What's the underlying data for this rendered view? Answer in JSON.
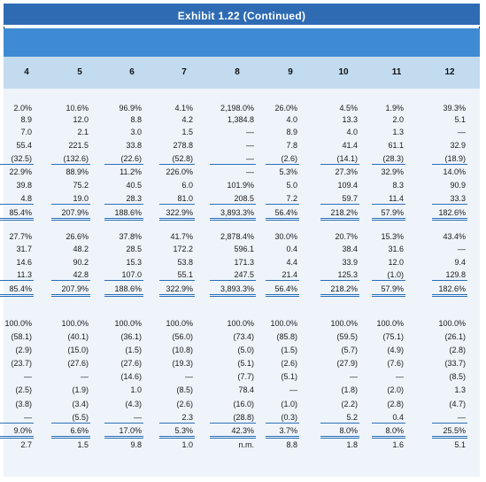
{
  "title": "Exhibit 1.22 (Continued)",
  "columns": [
    "4",
    "5",
    "6",
    "7",
    "8",
    "9",
    "10",
    "11",
    "12"
  ],
  "sections": [
    {
      "rows": [
        [
          "2.0%",
          "10.6%",
          "96.9%",
          "4.1%",
          "2,198.0%",
          "26.0%",
          "4.5%",
          "1.9%",
          "39.3%"
        ],
        [
          "8.9",
          "12.0",
          "8.8",
          "4.2",
          "1,384.8",
          "4.0",
          "13.3",
          "2.0",
          "5.1"
        ],
        [
          "7.0",
          "2.1",
          "3.0",
          "1.5",
          "—",
          "8.9",
          "4.0",
          "1.3",
          "—"
        ],
        [
          "55.4",
          "221.5",
          "33.8",
          "278.8",
          "—",
          "7.8",
          "41.4",
          "61.1",
          "32.9"
        ],
        [
          "(32.5)",
          "(132.6)",
          "(22.6)",
          "(52.8)",
          "—",
          "(2.6)",
          "(14.1)",
          "(28.3)",
          "(18.9)"
        ],
        [
          "22.9%",
          "88.9%",
          "11.2%",
          "226.0%",
          "—",
          "5.3%",
          "27.3%",
          "32.9%",
          "14.0%"
        ],
        [
          "39.8",
          "75.2",
          "40.5",
          "6.0",
          "101.9%",
          "5.0",
          "109.4",
          "8.3",
          "90.9"
        ],
        [
          "4.8",
          "19.0",
          "28.3",
          "81.0",
          "208.5",
          "7.2",
          "59.7",
          "11.4",
          "33.3"
        ],
        [
          "85.4%",
          "207.9%",
          "188.6%",
          "322.9%",
          "3,893.3%",
          "56.4%",
          "218.2%",
          "57.9%",
          "182.6%"
        ]
      ]
    },
    {
      "rows": [
        [
          "27.7%",
          "26.6%",
          "37.8%",
          "41.7%",
          "2,878.4%",
          "30.0%",
          "20.7%",
          "15.3%",
          "43.4%"
        ],
        [
          "31.7",
          "48.2",
          "28.5",
          "172.2",
          "596.1",
          "0.4",
          "38.4",
          "31.6",
          "—"
        ],
        [
          "14.6",
          "90.2",
          "15.3",
          "53.8",
          "171.3",
          "4.4",
          "33.9",
          "12.0",
          "9.4"
        ],
        [
          "11.3",
          "42.8",
          "107.0",
          "55.1",
          "247.5",
          "21.4",
          "125.3",
          "(1.0)",
          "129.8"
        ],
        [
          "85.4%",
          "207.9%",
          "188.6%",
          "322.9%",
          "3,893.3%",
          "56.4%",
          "218.2%",
          "57.9%",
          "182.6%"
        ]
      ]
    },
    {
      "rows": [
        [
          "100.0%",
          "100.0%",
          "100.0%",
          "100.0%",
          "100.0%",
          "100.0%",
          "100.0%",
          "100.0%",
          "100.0%"
        ],
        [
          "(58.1)",
          "(40.1)",
          "(36.1)",
          "(56.0)",
          "(73.4)",
          "(85.8)",
          "(59.5)",
          "(75.1)",
          "(26.1)"
        ],
        [
          "(2.9)",
          "(15.0)",
          "(1.5)",
          "(10.8)",
          "(5.0)",
          "(1.5)",
          "(5.7)",
          "(4.9)",
          "(2.8)"
        ],
        [
          "(23.7)",
          "(27.6)",
          "(27.6)",
          "(19.3)",
          "(5.1)",
          "(2.6)",
          "(27.9)",
          "(7.6)",
          "(33.7)"
        ],
        [
          "—",
          "—",
          "(14.6)",
          "—",
          "(7.7)",
          "(5.1)",
          "—",
          "—",
          "(8.5)"
        ],
        [
          "(2.5)",
          "(1.9)",
          "1.0",
          "(8.5)",
          "78.4",
          "—",
          "(1.8)",
          "(2.0)",
          "1.3"
        ],
        [
          "(3.8)",
          "(3.4)",
          "(4.3)",
          "(2.6)",
          "(16.0)",
          "(1.0)",
          "(2.2)",
          "(2.8)",
          "(4.7)"
        ],
        [
          "—",
          "(5.5)",
          "—",
          "2.3",
          "(28.8)",
          "(0.3)",
          "5.2",
          "0.4",
          "—"
        ],
        [
          "9.0%",
          "6.6%",
          "17.0%",
          "5.3%",
          "42.3%",
          "3.7%",
          "8.0%",
          "8.0%",
          "25.5%"
        ],
        [
          "2.7",
          "1.5",
          "9.8",
          "1.0",
          "n.m.",
          "8.8",
          "1.8",
          "1.6",
          "5.1"
        ]
      ]
    }
  ]
}
